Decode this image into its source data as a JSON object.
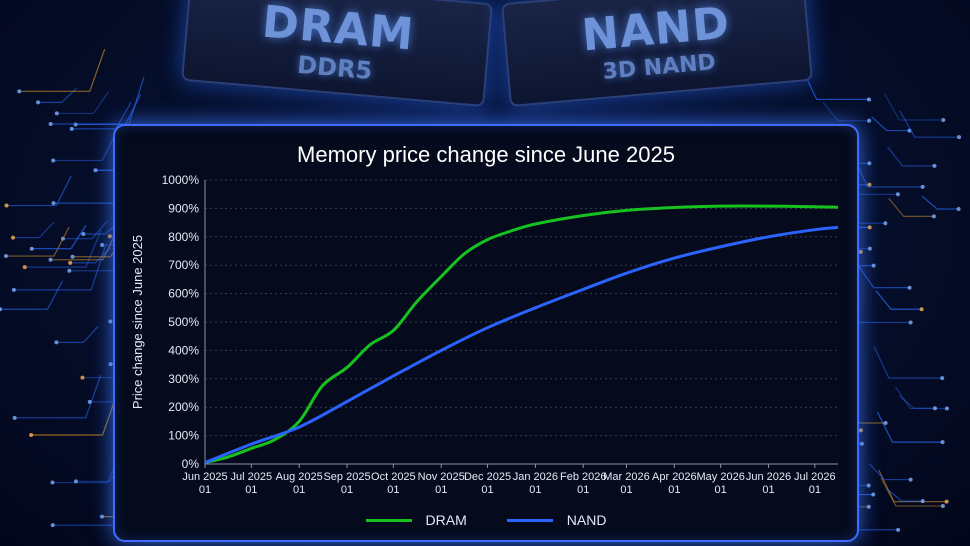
{
  "background": {
    "chips": [
      {
        "label": "DRAM",
        "sublabel": "DDR5"
      },
      {
        "label": "NAND",
        "sublabel": "3D NAND"
      }
    ]
  },
  "colors": {
    "accent": "#3f6cff",
    "dram": "#17c11f",
    "nand": "#2b63ff",
    "grid": "#3a3f52"
  },
  "chart_data": {
    "type": "line",
    "title": "Memory price change since June 2025",
    "xlabel": "",
    "ylabel": "Price change since June 2025",
    "x": [
      "Jun 2025 01",
      "Jul 2025 01",
      "Aug 2025 01",
      "Sep 2025 01",
      "Oct 2025 01",
      "Nov 2025 01",
      "Dec 2025 01",
      "Jan 2026 01",
      "Feb 2026 01",
      "Mar 2026 01",
      "Apr 2026 01",
      "May 2026 01",
      "Jun 2026 01",
      "Jul 2026 01"
    ],
    "x_tick_labels": [
      [
        "Jun 2025",
        "01"
      ],
      [
        "Jul 2025",
        "01"
      ],
      [
        "Aug 2025",
        "01"
      ],
      [
        "Sep 2025",
        "01"
      ],
      [
        "Oct 2025",
        "01"
      ],
      [
        "Nov 2025",
        "01"
      ],
      [
        "Dec 2025",
        "01"
      ],
      [
        "Jan 2026",
        "01"
      ],
      [
        "Feb 2026",
        "01"
      ],
      [
        "Mar 2026",
        "01"
      ],
      [
        "Apr 2026",
        "01"
      ],
      [
        "May 2026",
        "01"
      ],
      [
        "Jun 2026",
        "01"
      ],
      [
        "Jul 2026",
        "01"
      ]
    ],
    "ylim": [
      0,
      1000
    ],
    "y_ticks": [
      0,
      100,
      200,
      300,
      400,
      500,
      600,
      700,
      800,
      900,
      1000
    ],
    "y_tick_labels": [
      "0%",
      "100%",
      "200%",
      "300%",
      "400%",
      "500%",
      "600%",
      "700%",
      "800%",
      "900%",
      "1000%"
    ],
    "grid": "horizontal dashed",
    "legend_position": "bottom-center",
    "series": [
      {
        "name": "DRAM",
        "points": [
          [
            "2025-06-01",
            5
          ],
          [
            "2025-06-16",
            25
          ],
          [
            "2025-07-01",
            55
          ],
          [
            "2025-07-16",
            85
          ],
          [
            "2025-08-01",
            150
          ],
          [
            "2025-08-16",
            275
          ],
          [
            "2025-09-01",
            340
          ],
          [
            "2025-09-16",
            420
          ],
          [
            "2025-10-01",
            470
          ],
          [
            "2025-10-16",
            570
          ],
          [
            "2025-11-01",
            660
          ],
          [
            "2025-11-16",
            740
          ],
          [
            "2025-12-01",
            790
          ],
          [
            "2025-12-16",
            820
          ],
          [
            "2026-01-01",
            845
          ],
          [
            "2026-02-01",
            875
          ],
          [
            "2026-03-01",
            893
          ],
          [
            "2026-04-01",
            903
          ],
          [
            "2026-05-01",
            908
          ],
          [
            "2026-06-01",
            908
          ],
          [
            "2026-07-01",
            906
          ],
          [
            "2026-07-16",
            904
          ]
        ]
      },
      {
        "name": "NAND",
        "points": [
          [
            "2025-06-01",
            5
          ],
          [
            "2025-07-01",
            70
          ],
          [
            "2025-08-01",
            130
          ],
          [
            "2025-09-01",
            220
          ],
          [
            "2025-10-01",
            310
          ],
          [
            "2025-11-01",
            400
          ],
          [
            "2025-12-01",
            480
          ],
          [
            "2026-01-01",
            550
          ],
          [
            "2026-02-01",
            615
          ],
          [
            "2026-03-01",
            672
          ],
          [
            "2026-04-01",
            725
          ],
          [
            "2026-05-01",
            765
          ],
          [
            "2026-06-01",
            800
          ],
          [
            "2026-07-01",
            825
          ],
          [
            "2026-07-16",
            833
          ]
        ]
      }
    ]
  }
}
